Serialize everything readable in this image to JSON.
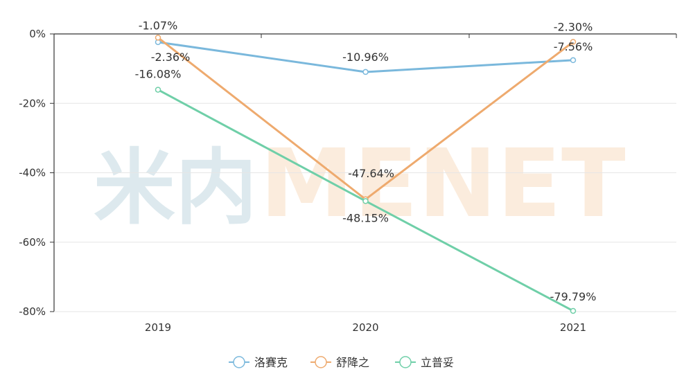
{
  "chart_data": {
    "type": "line",
    "categories": [
      "2019",
      "2020",
      "2021"
    ],
    "ylim": [
      -80,
      0
    ],
    "yticks": [
      0,
      -20,
      -40,
      -60,
      -80
    ],
    "ytick_labels": [
      "0%",
      "-20%",
      "-40%",
      "-60%",
      "-80%"
    ],
    "grid": true,
    "legend_position": "bottom-center",
    "series": [
      {
        "name": "洛賽克",
        "color": "#7ab8dc",
        "values": [
          -2.36,
          -10.96,
          -7.56
        ],
        "labels": [
          "-2.36%",
          "-10.96%",
          "-7.56%"
        ]
      },
      {
        "name": "舒降之",
        "color": "#eeaa6e",
        "values": [
          -1.07,
          -47.64,
          -2.3
        ],
        "labels": [
          "-1.07%",
          "-47.64%",
          "-2.30%"
        ]
      },
      {
        "name": "立普妥",
        "color": "#6fcfa8",
        "values": [
          -16.08,
          -48.15,
          -79.79
        ],
        "labels": [
          "-16.08%",
          "-48.15%",
          "-79.79%"
        ]
      }
    ]
  },
  "watermark": {
    "part1": "米内",
    "part2": "MENET"
  }
}
